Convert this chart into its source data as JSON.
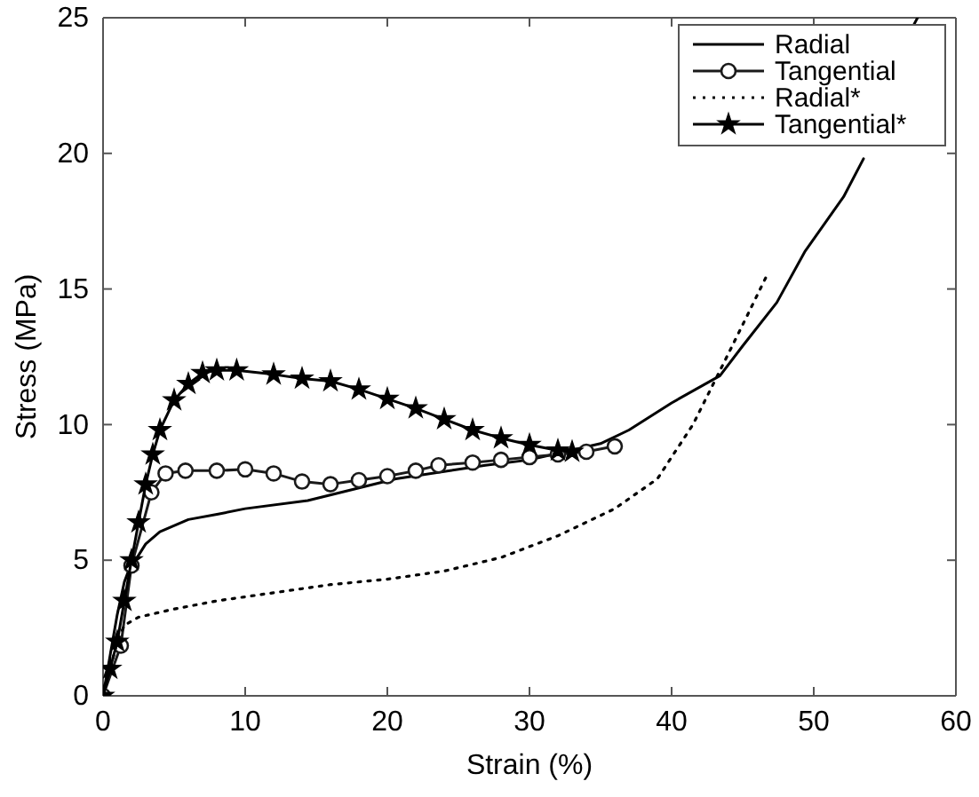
{
  "chart_data": {
    "type": "line",
    "xlabel": "Strain (%)",
    "ylabel": "Stress (MPa)",
    "xlim": [
      0,
      60
    ],
    "ylim": [
      0,
      25
    ],
    "xticks": [
      0,
      10,
      20,
      30,
      40,
      50,
      60
    ],
    "yticks": [
      0,
      5,
      10,
      15,
      20,
      25
    ],
    "grid": false,
    "legend": "top right",
    "series": [
      {
        "name": "Radial",
        "color": "#000000",
        "marker": "none",
        "line_style": "solid",
        "x": [
          0,
          0.5,
          1,
          1.5,
          2,
          2.4,
          3,
          4,
          6,
          8.1,
          10,
          14.4,
          20.6,
          26.9,
          30,
          35,
          37,
          40,
          43.4,
          45,
          47.4,
          49.4,
          52.1,
          53.5,
          55,
          57,
          57.3
        ],
        "values": [
          0,
          1.5,
          3,
          4.2,
          4.9,
          5.1,
          5.6,
          6.05,
          6.5,
          6.7,
          6.9,
          7.2,
          8.0,
          8.5,
          8.7,
          9.3,
          9.8,
          10.8,
          11.8,
          12.9,
          14.5,
          16.4,
          18.4,
          19.8,
          null,
          24.7,
          25
        ]
      },
      {
        "name": "Tangential",
        "color": "#1a1a1a",
        "marker": "circle",
        "line_style": "solid",
        "x": [
          0,
          1.25,
          2,
          3.4,
          4.4,
          5.8,
          8,
          10,
          12,
          14,
          16,
          18,
          20,
          22,
          23.6,
          26,
          28,
          30,
          32,
          34,
          36
        ],
        "values": [
          0,
          1.85,
          4.8,
          7.5,
          8.2,
          8.3,
          8.3,
          8.35,
          8.2,
          7.9,
          7.8,
          7.95,
          8.1,
          8.3,
          8.5,
          8.6,
          8.7,
          8.8,
          8.9,
          9.0,
          9.2
        ]
      },
      {
        "name": "Radial*",
        "color": "#000000",
        "marker": "none",
        "line_style": "dotted",
        "x": [
          0,
          0.5,
          1,
          1.5,
          2.5,
          5,
          8,
          12,
          16,
          20,
          24,
          28,
          32,
          36,
          39,
          41.5,
          43.6,
          45.3,
          46.7
        ],
        "values": [
          0,
          1,
          2,
          2.6,
          2.9,
          3.2,
          3.5,
          3.8,
          4.1,
          4.3,
          4.6,
          5.1,
          5.9,
          6.9,
          8.0,
          10,
          12.2,
          14,
          15.5
        ]
      },
      {
        "name": "Tangential*",
        "color": "#000000",
        "marker": "star",
        "line_style": "solid",
        "x": [
          0,
          0.5,
          1,
          1.5,
          2,
          2.5,
          3,
          3.5,
          4,
          5,
          6,
          7,
          8,
          9.4,
          12,
          14,
          16,
          18,
          20,
          22,
          24,
          26,
          28,
          30,
          32,
          33
        ],
        "values": [
          0,
          1,
          2,
          3.5,
          5,
          6.4,
          7.8,
          8.9,
          9.8,
          10.9,
          11.5,
          11.9,
          12.0,
          12.0,
          11.85,
          11.7,
          11.6,
          11.3,
          10.95,
          10.6,
          10.2,
          9.8,
          9.5,
          9.25,
          9.05,
          9.0
        ]
      }
    ]
  }
}
